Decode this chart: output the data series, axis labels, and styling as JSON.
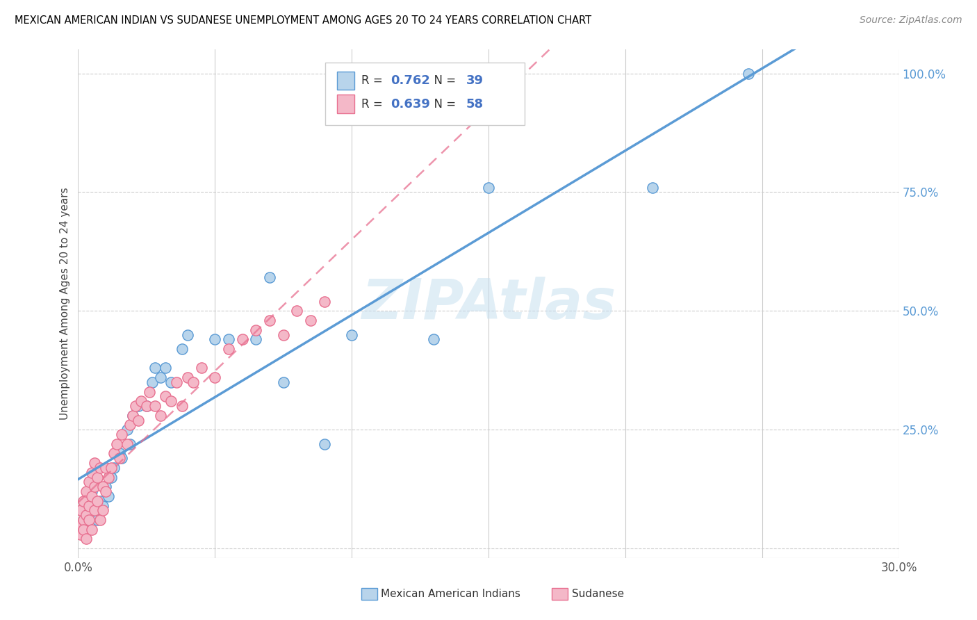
{
  "title": "MEXICAN AMERICAN INDIAN VS SUDANESE UNEMPLOYMENT AMONG AGES 20 TO 24 YEARS CORRELATION CHART",
  "source": "Source: ZipAtlas.com",
  "ylabel": "Unemployment Among Ages 20 to 24 years",
  "xmin": 0.0,
  "xmax": 0.3,
  "ymin": -0.02,
  "ymax": 1.05,
  "yticks": [
    0.0,
    0.25,
    0.5,
    0.75,
    1.0
  ],
  "ytick_labels": [
    "",
    "25.0%",
    "50.0%",
    "75.0%",
    "100.0%"
  ],
  "r_blue": 0.762,
  "n_blue": 39,
  "r_pink": 0.639,
  "n_pink": 58,
  "color_blue": "#b8d4eb",
  "color_pink": "#f4b8c8",
  "color_blue_line": "#5b9bd5",
  "color_pink_line": "#e87090",
  "watermark": "ZIPAtlas",
  "blue_x": [
    0.001,
    0.002,
    0.003,
    0.004,
    0.005,
    0.005,
    0.006,
    0.007,
    0.008,
    0.009,
    0.01,
    0.011,
    0.012,
    0.013,
    0.015,
    0.016,
    0.018,
    0.019,
    0.02,
    0.022,
    0.025,
    0.027,
    0.028,
    0.03,
    0.032,
    0.034,
    0.038,
    0.04,
    0.05,
    0.055,
    0.065,
    0.07,
    0.075,
    0.09,
    0.1,
    0.13,
    0.15,
    0.21,
    0.245
  ],
  "blue_y": [
    0.05,
    0.03,
    0.06,
    0.04,
    0.08,
    0.12,
    0.07,
    0.06,
    0.1,
    0.09,
    0.13,
    0.11,
    0.15,
    0.17,
    0.2,
    0.19,
    0.25,
    0.22,
    0.28,
    0.3,
    0.3,
    0.35,
    0.38,
    0.36,
    0.38,
    0.35,
    0.42,
    0.45,
    0.44,
    0.44,
    0.44,
    0.57,
    0.35,
    0.22,
    0.45,
    0.44,
    0.76,
    0.76,
    1.0
  ],
  "pink_x": [
    0.001,
    0.001,
    0.001,
    0.002,
    0.002,
    0.002,
    0.003,
    0.003,
    0.003,
    0.004,
    0.004,
    0.004,
    0.005,
    0.005,
    0.005,
    0.006,
    0.006,
    0.006,
    0.007,
    0.007,
    0.008,
    0.008,
    0.009,
    0.009,
    0.01,
    0.01,
    0.011,
    0.012,
    0.013,
    0.014,
    0.015,
    0.016,
    0.018,
    0.019,
    0.02,
    0.021,
    0.022,
    0.023,
    0.025,
    0.026,
    0.028,
    0.03,
    0.032,
    0.034,
    0.036,
    0.038,
    0.04,
    0.042,
    0.045,
    0.05,
    0.055,
    0.06,
    0.065,
    0.07,
    0.075,
    0.08,
    0.085,
    0.09
  ],
  "pink_y": [
    0.05,
    0.08,
    0.03,
    0.06,
    0.1,
    0.04,
    0.07,
    0.12,
    0.02,
    0.09,
    0.14,
    0.06,
    0.11,
    0.16,
    0.04,
    0.13,
    0.08,
    0.18,
    0.1,
    0.15,
    0.06,
    0.17,
    0.08,
    0.13,
    0.17,
    0.12,
    0.15,
    0.17,
    0.2,
    0.22,
    0.19,
    0.24,
    0.22,
    0.26,
    0.28,
    0.3,
    0.27,
    0.31,
    0.3,
    0.33,
    0.3,
    0.28,
    0.32,
    0.31,
    0.35,
    0.3,
    0.36,
    0.35,
    0.38,
    0.36,
    0.42,
    0.44,
    0.46,
    0.48,
    0.45,
    0.5,
    0.48,
    0.52
  ]
}
